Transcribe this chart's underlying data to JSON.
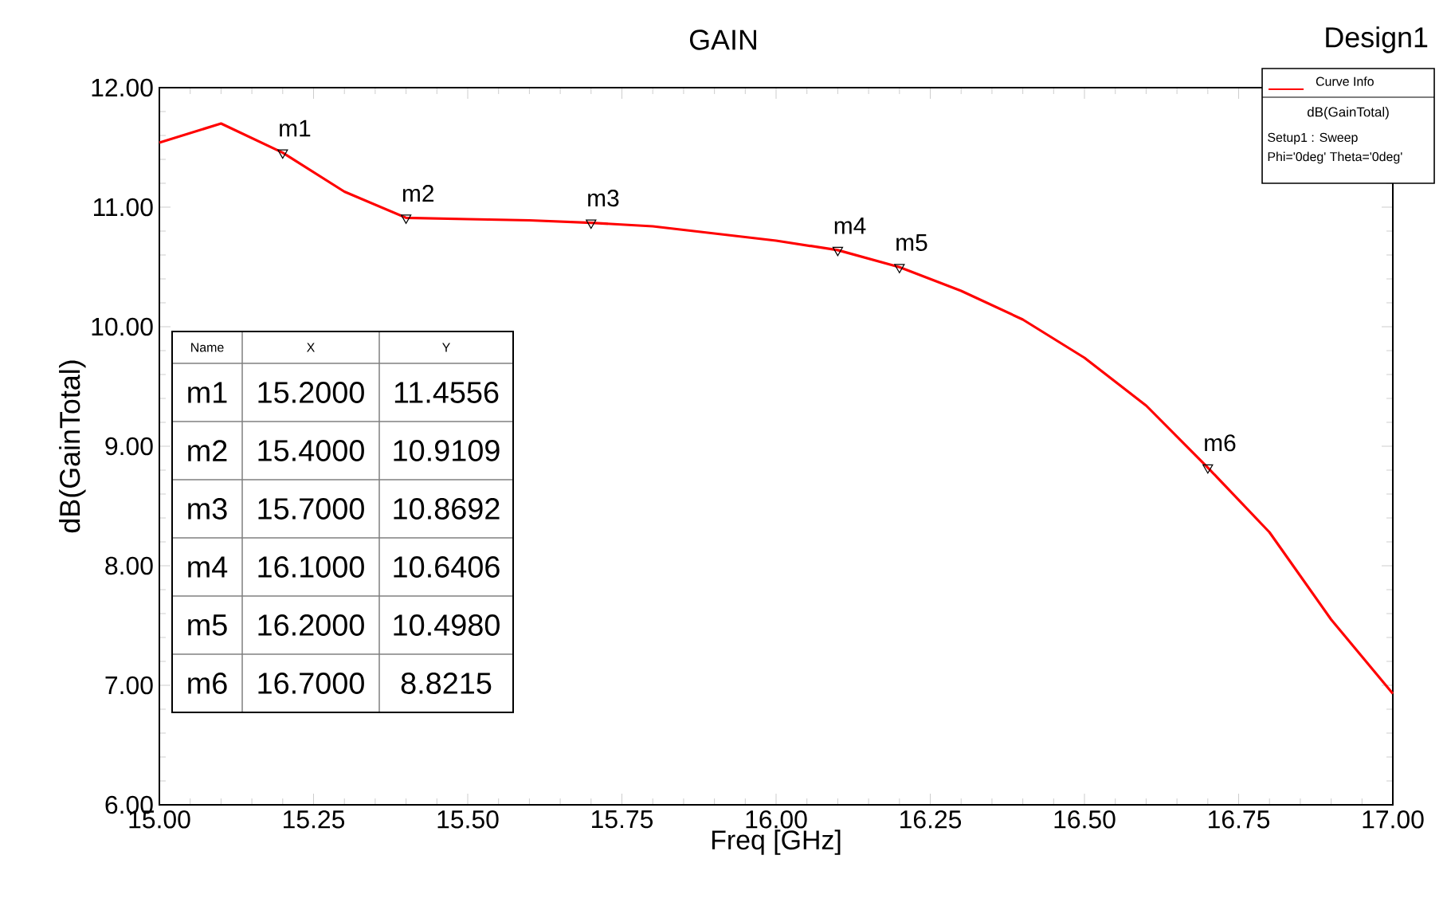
{
  "chart_data": {
    "type": "line",
    "title": "GAIN",
    "subtitle": "Design1",
    "xlabel": "Freq [GHz]",
    "ylabel": "dB(GainTotal)",
    "legend_title": "Curve Info",
    "legend": "top right",
    "grid": false,
    "marker": "none",
    "line_style": "solid",
    "x": [
      15.0,
      15.1,
      15.2,
      15.3,
      15.4,
      15.5,
      15.6,
      15.7,
      15.8,
      15.9,
      16.0,
      16.1,
      16.2,
      16.3,
      16.4,
      16.5,
      16.6,
      16.7,
      16.8,
      16.9,
      17.0
    ],
    "series": [
      {
        "name": "dB(GainTotal)",
        "color": "#ff0000",
        "values": [
          11.54,
          11.7,
          11.4556,
          11.13,
          10.9109,
          10.9,
          10.89,
          10.8692,
          10.84,
          10.78,
          10.72,
          10.6406,
          10.498,
          10.3,
          10.06,
          9.74,
          9.34,
          8.8215,
          8.28,
          7.55,
          6.93
        ]
      },
      {
        "type": "scatter",
        "marker": "triangle",
        "color": "#000000",
        "x": [
          15.2,
          15.4,
          15.7,
          16.1,
          16.2,
          16.7
        ],
        "values": [
          11.4556,
          10.9109,
          10.8692,
          10.6406,
          10.498,
          8.8215
        ]
      }
    ],
    "xlim": [
      15.0,
      17.0
    ],
    "ylim": [
      6.0,
      12.0
    ],
    "xticks": [
      {
        "value": 15.0,
        "label": "15.00"
      },
      {
        "value": 15.25,
        "label": "15.25"
      },
      {
        "value": 15.5,
        "label": "15.50"
      },
      {
        "value": 15.75,
        "label": "15.75"
      },
      {
        "value": 16.0,
        "label": "16.00"
      },
      {
        "value": 16.25,
        "label": "16.25"
      },
      {
        "value": 16.5,
        "label": "16.50"
      },
      {
        "value": 16.75,
        "label": "16.75"
      },
      {
        "value": 17.0,
        "label": "17.00"
      }
    ],
    "yticks": [
      {
        "value": 6.0,
        "label": "6.00"
      },
      {
        "value": 7.0,
        "label": "7.00"
      },
      {
        "value": 8.0,
        "label": "8.00"
      },
      {
        "value": 9.0,
        "label": "9.00"
      },
      {
        "value": 10.0,
        "label": "10.00"
      },
      {
        "value": 11.0,
        "label": "11.00"
      },
      {
        "value": 12.0,
        "label": "12.00"
      }
    ],
    "annotations": [
      "Setup1 : Sweep",
      "Phi='0deg'  Theta='0deg'",
      "Name",
      "X",
      "Y",
      "m1",
      "15.2000",
      "11.4556",
      "m2",
      "15.4000",
      "10.9109",
      "m3",
      "15.7000",
      "10.8692",
      "m4",
      "16.1000",
      "10.6406",
      "m5",
      "16.2000",
      "10.4980",
      "m6",
      "16.7000",
      "8.8215",
      {
        "text": "m1",
        "x": 15.2,
        "y": 11.4556
      },
      {
        "text": "m2",
        "x": 15.4,
        "y": 10.9109
      },
      {
        "text": "m3",
        "x": 15.7,
        "y": 10.8692
      },
      {
        "text": "m4",
        "x": 16.1,
        "y": 10.6406
      },
      {
        "text": "m5",
        "x": 16.2,
        "y": 10.498
      },
      {
        "text": "m6",
        "x": 16.7,
        "y": 8.8215
      }
    ]
  }
}
